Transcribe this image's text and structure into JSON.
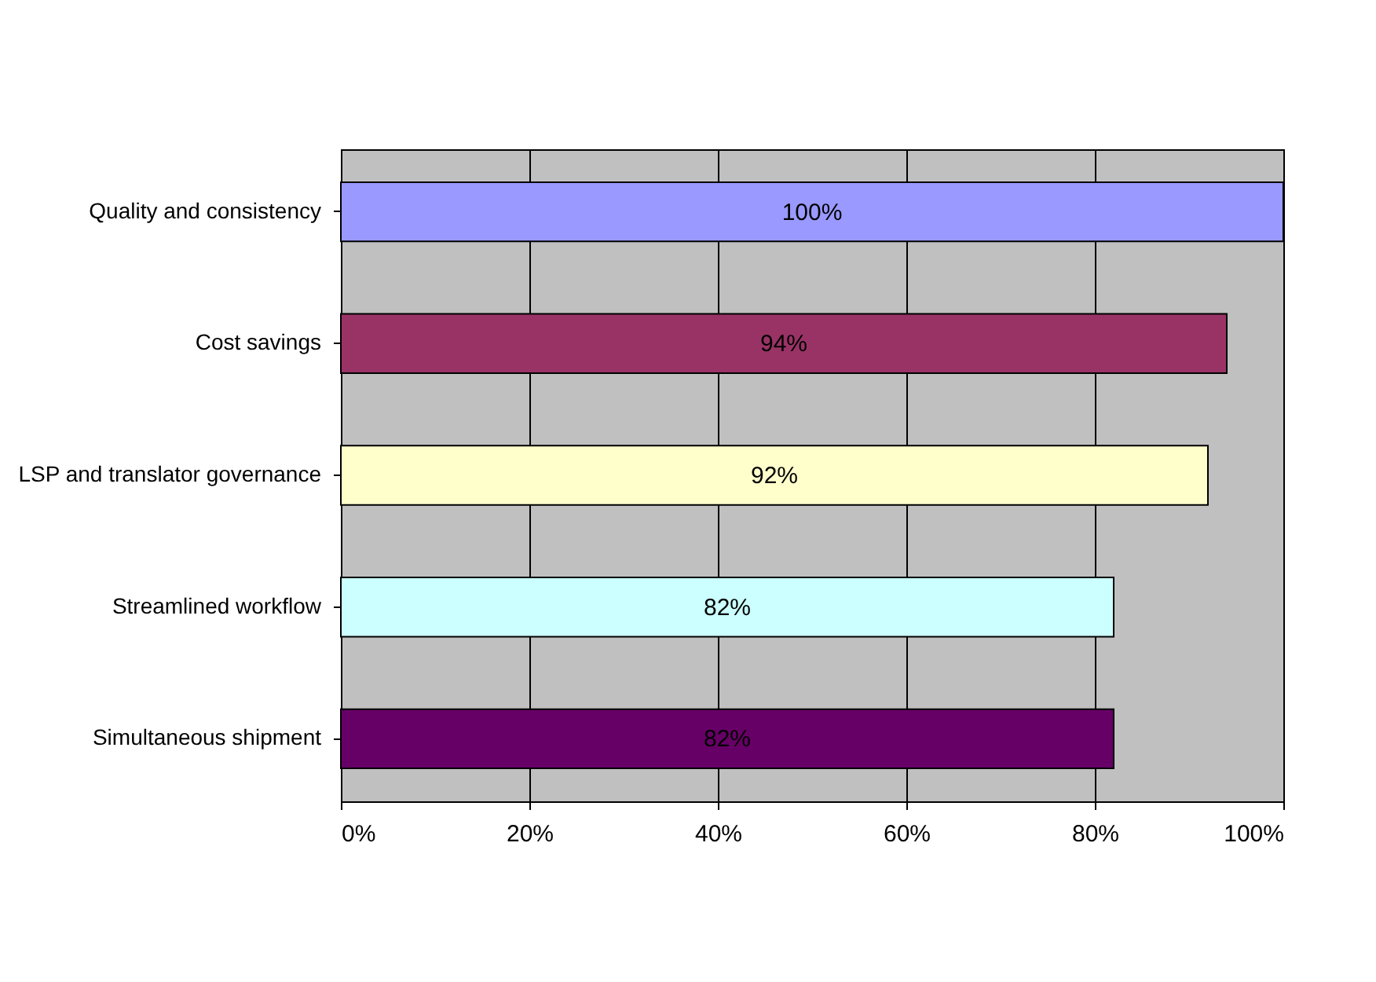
{
  "chart_data": {
    "type": "bar",
    "orientation": "horizontal",
    "categories": [
      "Quality and consistency",
      "Cost savings",
      "LSP and translator governance",
      "Streamlined workflow",
      "Simultaneous shipment"
    ],
    "values": [
      100,
      94,
      92,
      82,
      82
    ],
    "colors": [
      "#9999ff",
      "#993366",
      "#ffffcc",
      "#ccffff",
      "#660066"
    ],
    "value_labels": [
      "100%",
      "94%",
      "92%",
      "82%",
      "82%"
    ],
    "xlim": [
      0,
      100
    ],
    "xticks": [
      {
        "value": 0,
        "label": "0%"
      },
      {
        "value": 20,
        "label": "20%"
      },
      {
        "value": 40,
        "label": "40%"
      },
      {
        "value": 60,
        "label": "60%"
      },
      {
        "value": 80,
        "label": "80%"
      },
      {
        "value": 100,
        "label": "100%"
      }
    ],
    "grid": "x"
  }
}
